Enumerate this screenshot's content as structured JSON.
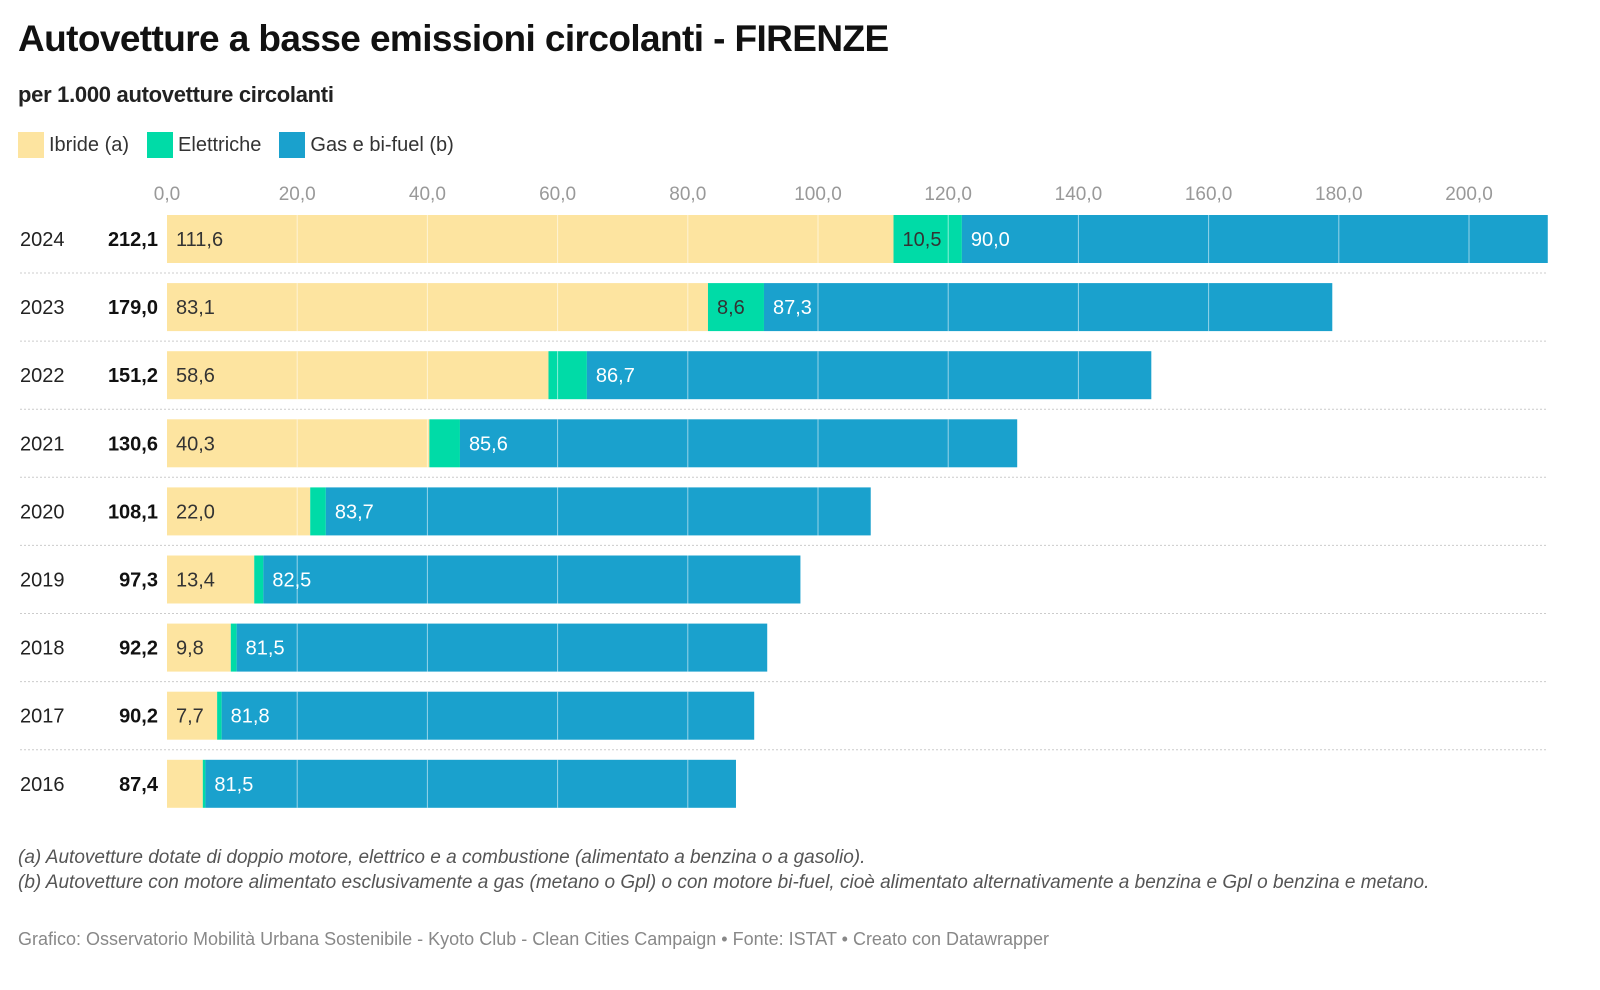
{
  "header": {
    "title": "Autovetture a basse emissioni circolanti - FIRENZE",
    "subtitle": "per 1.000 autovetture circolanti"
  },
  "legend": [
    {
      "label": "Ibride (a)",
      "color": "#fde4a0"
    },
    {
      "label": "Elettriche",
      "color": "#00dba7"
    },
    {
      "label": "Gas e bi-fuel (b)",
      "color": "#1aa1cd"
    }
  ],
  "chart_data": {
    "type": "bar",
    "orientation": "horizontal",
    "stacked": true,
    "title": "Autovetture a basse emissioni circolanti - FIRENZE",
    "subtitle": "per 1.000 autovetture circolanti",
    "xlabel": "",
    "ylabel": "",
    "xlim": [
      0,
      212.1
    ],
    "grid": true,
    "legend_position": "top-left",
    "x_ticks": [
      0,
      20,
      40,
      60,
      80,
      100,
      120,
      140,
      160,
      180,
      200
    ],
    "x_tick_labels": [
      "0,0",
      "20,0",
      "40,0",
      "60,0",
      "80,0",
      "100,0",
      "120,0",
      "140,0",
      "160,0",
      "180,0",
      "200,0"
    ],
    "categories": [
      "2024",
      "2023",
      "2022",
      "2021",
      "2020",
      "2019",
      "2018",
      "2017",
      "2016"
    ],
    "totals": [
      212.1,
      179.0,
      151.2,
      130.6,
      108.1,
      97.3,
      92.2,
      90.2,
      87.4
    ],
    "total_labels": [
      "212,1",
      "179,0",
      "151,2",
      "130,6",
      "108,1",
      "97,3",
      "92,2",
      "90,2",
      "87,4"
    ],
    "series": [
      {
        "name": "Ibride (a)",
        "color": "#fde4a0",
        "label_color": "#333333",
        "values": [
          111.6,
          83.1,
          58.6,
          40.3,
          22.0,
          13.4,
          9.8,
          7.7,
          5.5
        ],
        "labels": [
          "111,6",
          "83,1",
          "58,6",
          "40,3",
          "22,0",
          "13,4",
          "9,8",
          "7,7",
          null
        ]
      },
      {
        "name": "Elettriche",
        "color": "#00dba7",
        "label_color": "#333333",
        "values": [
          10.5,
          8.6,
          5.9,
          4.7,
          2.4,
          1.4,
          0.9,
          0.7,
          0.4
        ],
        "labels": [
          "10,5",
          "8,6",
          null,
          null,
          null,
          null,
          null,
          null,
          null
        ]
      },
      {
        "name": "Gas e bi-fuel (b)",
        "color": "#1aa1cd",
        "label_color": "#ffffff",
        "values": [
          90.0,
          87.3,
          86.7,
          85.6,
          83.7,
          82.5,
          81.5,
          81.8,
          81.5
        ],
        "labels": [
          "90,0",
          "87,3",
          "86,7",
          "85,6",
          "83,7",
          "82,5",
          "81,5",
          "81,8",
          "81,5"
        ]
      }
    ]
  },
  "notes": [
    "(a) Autovetture dotate di doppio motore, elettrico e a combustione (alimentato a benzina o a gasolio).",
    "(b) Autovetture con motore alimentato esclusivamente a gas (metano o Gpl) o con motore bi-fuel, cioè alimentato alternativamente a benzina e Gpl o benzina e metano."
  ],
  "credit": "Grafico: Osservatorio Mobilità Urbana Sostenibile - Kyoto Club - Clean Cities Campaign • Fonte: ISTAT • Creato con Datawrapper"
}
